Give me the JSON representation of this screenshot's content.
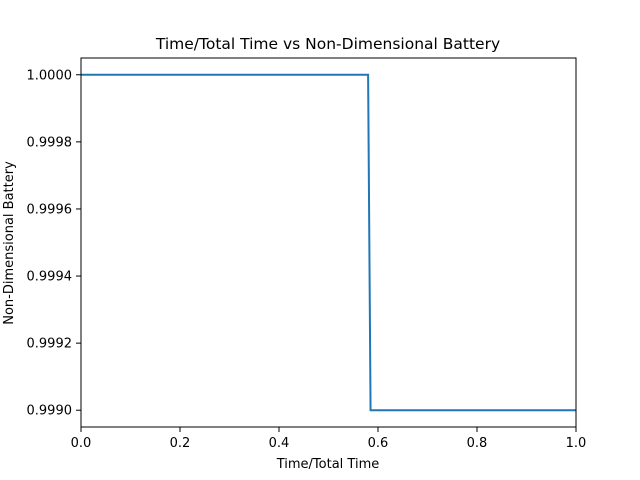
{
  "chart_data": {
    "type": "line",
    "title": "Time/Total Time vs Non-Dimensional Battery",
    "xlabel": "Time/Total Time",
    "ylabel": "Non-Dimensional Battery",
    "xlim": [
      0.0,
      1.0
    ],
    "ylim": [
      0.99895,
      1.00005
    ],
    "x_ticks": [
      {
        "value": 0.0,
        "label": "0.0"
      },
      {
        "value": 0.2,
        "label": "0.2"
      },
      {
        "value": 0.4,
        "label": "0.4"
      },
      {
        "value": 0.6,
        "label": "0.6"
      },
      {
        "value": 0.8,
        "label": "0.8"
      },
      {
        "value": 1.0,
        "label": "1.0"
      }
    ],
    "y_ticks": [
      {
        "value": 0.999,
        "label": "0.9990"
      },
      {
        "value": 0.9992,
        "label": "0.9992"
      },
      {
        "value": 0.9994,
        "label": "0.9994"
      },
      {
        "value": 0.9996,
        "label": "0.9996"
      },
      {
        "value": 0.9998,
        "label": "0.9998"
      },
      {
        "value": 1.0,
        "label": "1.0000"
      }
    ],
    "grid": false,
    "series": [
      {
        "color": "#1f77b4",
        "x": [
          0.0,
          0.58,
          0.585,
          1.0
        ],
        "y": [
          1.0,
          1.0,
          0.999,
          0.999
        ]
      }
    ]
  }
}
